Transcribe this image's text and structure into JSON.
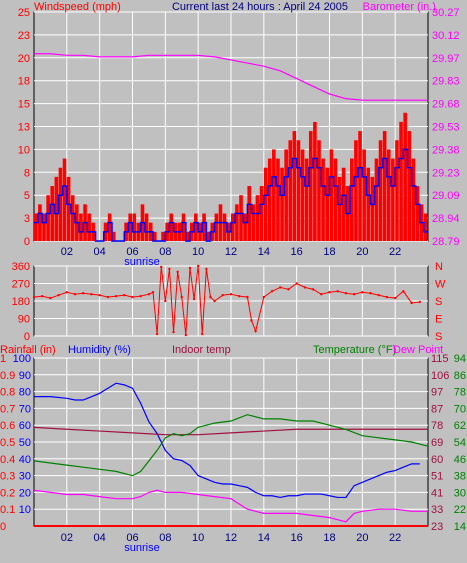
{
  "colors": {
    "background": "#c0c0c0",
    "wind": "#ff0000",
    "gust": "#0000ff",
    "barometer": "#ff00ff",
    "winddir": "#ff0000",
    "rainfall": "#ff0000",
    "humidity": "#0000ff",
    "indoor": "#a01040",
    "temperature": "#008000",
    "dewpoint": "#ff00ff",
    "title": "#000080",
    "gridline": "#ffffff"
  },
  "chart_data": [
    {
      "id": "wind-barometer",
      "type": "bar",
      "title": "Current last 24 hours : April 24 2005",
      "left_axis_label": "Windspeed (mph)",
      "right_axis_label": "Barometer (in.)",
      "x_ticks": [
        "02",
        "04",
        "06",
        "08",
        "10",
        "12",
        "14",
        "16",
        "18",
        "20",
        "22"
      ],
      "x_tick_hours": [
        2,
        4,
        6,
        8,
        10,
        12,
        14,
        16,
        18,
        20,
        22
      ],
      "x_range": [
        0,
        24
      ],
      "sunrise_label": "sunrise",
      "sunrise_hour": 6,
      "left_ticks": [
        "0",
        "3",
        "5",
        "8",
        "10",
        "13",
        "15",
        "18",
        "20",
        "23",
        "25"
      ],
      "left_range": [
        0,
        25
      ],
      "right_ticks": [
        "28.79",
        "28.94",
        "29.09",
        "29.23",
        "29.38",
        "29.53",
        "29.68",
        "29.83",
        "29.97",
        "30.12",
        "30.27"
      ],
      "right_range": [
        28.79,
        30.27
      ],
      "series": [
        {
          "name": "Windspeed",
          "style": "bars",
          "x": [
            0,
            0.25,
            0.5,
            0.75,
            1,
            1.25,
            1.5,
            1.75,
            2,
            2.25,
            2.5,
            2.75,
            3,
            3.25,
            3.5,
            3.75,
            4,
            4.25,
            4.5,
            4.75,
            5,
            5.25,
            5.5,
            5.75,
            6,
            6.25,
            6.5,
            6.75,
            7,
            7.25,
            7.5,
            7.75,
            8,
            8.25,
            8.5,
            8.75,
            9,
            9.25,
            9.5,
            9.75,
            10,
            10.25,
            10.5,
            10.75,
            11,
            11.25,
            11.5,
            11.75,
            12,
            12.25,
            12.5,
            12.75,
            13,
            13.25,
            13.5,
            13.75,
            14,
            14.25,
            14.5,
            14.75,
            15,
            15.25,
            15.5,
            15.75,
            16,
            16.25,
            16.5,
            16.75,
            17,
            17.25,
            17.5,
            17.75,
            18,
            18.25,
            18.5,
            18.75,
            19,
            19.25,
            19.5,
            19.75,
            20,
            20.25,
            20.5,
            20.75,
            21,
            21.25,
            21.5,
            21.75,
            22,
            22.25,
            22.5,
            22.75,
            23,
            23.25,
            23.5,
            23.75
          ],
          "values": [
            3,
            4,
            3,
            5,
            6,
            7,
            8,
            9,
            7,
            5,
            4,
            3,
            4,
            3,
            2,
            0,
            0,
            2,
            3,
            1,
            0,
            0,
            2,
            3,
            3,
            2,
            4,
            3,
            2,
            1,
            0,
            1,
            2,
            3,
            2,
            2,
            3,
            1,
            2,
            3,
            2,
            3,
            1,
            2,
            3,
            4,
            3,
            2,
            3,
            4,
            5,
            3,
            6,
            4,
            5,
            6,
            8,
            9,
            10,
            9,
            8,
            10,
            11,
            12,
            11,
            10,
            9,
            12,
            13,
            11,
            9,
            8,
            10,
            9,
            7,
            8,
            6,
            9,
            11,
            12,
            10,
            8,
            7,
            9,
            11,
            12,
            10,
            9,
            11,
            13,
            14,
            12,
            9,
            6,
            4,
            3
          ]
        },
        {
          "name": "Gust",
          "style": "steps",
          "x": [
            0,
            0.25,
            0.5,
            0.75,
            1,
            1.25,
            1.5,
            1.75,
            2,
            2.25,
            2.5,
            2.75,
            3,
            3.25,
            3.5,
            3.75,
            4,
            4.25,
            4.5,
            4.75,
            5,
            5.25,
            5.5,
            5.75,
            6,
            6.25,
            6.5,
            6.75,
            7,
            7.25,
            7.5,
            7.75,
            8,
            8.25,
            8.5,
            8.75,
            9,
            9.25,
            9.5,
            9.75,
            10,
            10.25,
            10.5,
            10.75,
            11,
            11.25,
            11.5,
            11.75,
            12,
            12.25,
            12.5,
            12.75,
            13,
            13.25,
            13.5,
            13.75,
            14,
            14.25,
            14.5,
            14.75,
            15,
            15.25,
            15.5,
            15.75,
            16,
            16.25,
            16.5,
            16.75,
            17,
            17.25,
            17.5,
            17.75,
            18,
            18.25,
            18.5,
            18.75,
            19,
            19.25,
            19.5,
            19.75,
            20,
            20.25,
            20.5,
            20.75,
            21,
            21.25,
            21.5,
            21.75,
            22,
            22.25,
            22.5,
            22.75,
            23,
            23.25,
            23.5,
            23.75
          ],
          "values": [
            2,
            3,
            2,
            3,
            4,
            3,
            5,
            6,
            4,
            3,
            2,
            1,
            2,
            1,
            1,
            0,
            0,
            1,
            2,
            0,
            0,
            0,
            1,
            2,
            1,
            1,
            2,
            1,
            1,
            0,
            0,
            0,
            1,
            2,
            1,
            1,
            2,
            0,
            1,
            2,
            1,
            2,
            0,
            1,
            2,
            2,
            2,
            1,
            2,
            3,
            3,
            2,
            4,
            3,
            3,
            4,
            5,
            6,
            7,
            6,
            5,
            7,
            8,
            9,
            8,
            7,
            6,
            8,
            9,
            8,
            6,
            5,
            7,
            6,
            4,
            5,
            3,
            6,
            7,
            8,
            7,
            5,
            4,
            6,
            8,
            9,
            7,
            6,
            8,
            9,
            10,
            8,
            6,
            4,
            2,
            1
          ]
        },
        {
          "name": "Barometer",
          "style": "line",
          "x": [
            0,
            1,
            2,
            3,
            4,
            5,
            6,
            7,
            8,
            9,
            10,
            11,
            12,
            13,
            14,
            15,
            16,
            17,
            18,
            19,
            20,
            21,
            22,
            23,
            24
          ],
          "values": [
            30.0,
            30.0,
            29.99,
            29.99,
            29.98,
            29.98,
            29.98,
            29.99,
            29.99,
            29.99,
            29.99,
            29.98,
            29.96,
            29.94,
            29.92,
            29.89,
            29.84,
            29.79,
            29.74,
            29.71,
            29.7,
            29.7,
            29.7,
            29.7,
            29.7
          ]
        }
      ]
    },
    {
      "id": "wind-direction",
      "type": "line",
      "left_ticks": [
        "0",
        "90",
        "180",
        "270",
        "360"
      ],
      "left_range": [
        0,
        360
      ],
      "right_ticks": [
        "S",
        "E",
        "S",
        "W",
        "N"
      ],
      "right_tick_values": [
        0,
        90,
        180,
        270,
        360
      ],
      "x_range": [
        0,
        24
      ],
      "series": [
        {
          "name": "Wind direction",
          "x": [
            0,
            0.5,
            1,
            1.5,
            2,
            2.5,
            3,
            3.5,
            4,
            4.5,
            5,
            5.5,
            6,
            6.5,
            7,
            7.25,
            7.5,
            7.75,
            8,
            8.25,
            8.5,
            8.75,
            9,
            9.25,
            9.5,
            9.75,
            10,
            10.25,
            10.5,
            10.75,
            11,
            11.5,
            12,
            12.5,
            13,
            13.25,
            13.5,
            14,
            14.5,
            15,
            15.5,
            16,
            16.5,
            17,
            17.5,
            18,
            18.5,
            19,
            19.5,
            20,
            20.5,
            21,
            21.5,
            22,
            22.5,
            23,
            23.5
          ],
          "values": [
            200,
            205,
            195,
            210,
            225,
            215,
            220,
            215,
            210,
            200,
            205,
            210,
            200,
            205,
            215,
            225,
            10,
            355,
            180,
            345,
            20,
            330,
            200,
            5,
            350,
            190,
            360,
            10,
            345,
            200,
            180,
            210,
            215,
            205,
            200,
            80,
            25,
            200,
            230,
            250,
            240,
            270,
            250,
            240,
            215,
            225,
            230,
            220,
            215,
            225,
            220,
            210,
            200,
            195,
            230,
            170,
            175
          ]
        }
      ]
    },
    {
      "id": "climate",
      "type": "line",
      "labels": {
        "rainfall": "Rainfall (in)",
        "humidity": "Humidity (%)",
        "indoor": "Indoor temp",
        "temperature": "Temperature (°F)",
        "dewpoint": "Dew Point"
      },
      "x_ticks": [
        "02",
        "04",
        "06",
        "08",
        "10",
        "12",
        "14",
        "16",
        "18",
        "20",
        "22"
      ],
      "x_tick_hours": [
        2,
        4,
        6,
        8,
        10,
        12,
        14,
        16,
        18,
        20,
        22
      ],
      "x_range": [
        0,
        24
      ],
      "sunrise_label": "sunrise",
      "sunrise_hour": 6,
      "rain_ticks": [
        "0",
        "0.1",
        "0.2",
        "0.3",
        "0.4",
        "0.5",
        "0.6",
        "0.7",
        "0.8",
        "0.9",
        "1"
      ],
      "humidity_ticks": [
        "10",
        "20",
        "30",
        "40",
        "50",
        "60",
        "70",
        "80",
        "90",
        "100"
      ],
      "humidity_range": [
        0,
        100
      ],
      "indoor_ticks": [
        "23",
        "33",
        "41",
        "51",
        "60",
        "69",
        "78",
        "87",
        "97",
        "106",
        "115"
      ],
      "indoor_range": [
        23,
        115
      ],
      "temperature_ticks": [
        "14",
        "22",
        "30",
        "38",
        "46",
        "54",
        "62",
        "70",
        "78",
        "86",
        "94"
      ],
      "temperature_range": [
        14,
        94
      ],
      "series": [
        {
          "name": "Humidity",
          "x": [
            0,
            1,
            2,
            2.5,
            3,
            3.5,
            4,
            4.5,
            5,
            5.5,
            6,
            6.5,
            7,
            7.5,
            8,
            8.5,
            9,
            9.5,
            10,
            10.5,
            11,
            11.5,
            12,
            12.5,
            13,
            13.5,
            14,
            14.5,
            15,
            15.5,
            16,
            16.5,
            17,
            17.5,
            18,
            18.5,
            19,
            19.5,
            20,
            20.5,
            21,
            21.5,
            22,
            22.5,
            23,
            23.5
          ],
          "values": [
            77,
            77,
            76,
            75,
            75,
            77,
            79,
            82,
            85,
            84,
            82,
            73,
            62,
            55,
            45,
            40,
            39,
            36,
            30,
            28,
            26,
            25,
            25,
            24,
            23,
            20,
            18,
            18,
            17,
            18,
            18,
            19,
            19,
            19,
            18,
            17,
            17,
            24,
            26,
            28,
            30,
            32,
            33,
            35,
            37,
            37
          ]
        },
        {
          "name": "Indoor temp",
          "x": [
            0,
            2,
            4,
            6,
            8,
            10,
            12,
            14,
            16,
            18,
            20,
            22,
            24
          ],
          "values": [
            77,
            76,
            75,
            74,
            73,
            73,
            74,
            75,
            76,
            76,
            76,
            76,
            76
          ]
        },
        {
          "name": "Temperature",
          "x": [
            0,
            1,
            2,
            3,
            4,
            5,
            6,
            6.5,
            7,
            7.5,
            8,
            8.5,
            9,
            9.5,
            10,
            11,
            12,
            13,
            14,
            15,
            16,
            17,
            18,
            19,
            20,
            21,
            22,
            23,
            24
          ],
          "values": [
            45,
            44,
            43,
            42,
            41,
            40,
            38,
            40,
            45,
            50,
            56,
            58,
            57,
            58,
            61,
            63,
            64,
            67,
            65,
            65,
            64,
            64,
            62,
            60,
            57,
            56,
            55,
            54,
            52
          ]
        },
        {
          "name": "Dew Point",
          "x": [
            0,
            1,
            2,
            3,
            4,
            5,
            6,
            6.5,
            7,
            7.5,
            8,
            9,
            10,
            11,
            12,
            13,
            14,
            15,
            16,
            17,
            18,
            19,
            19.5,
            20,
            21,
            22,
            23,
            24
          ],
          "values": [
            31,
            30,
            29,
            29,
            28,
            27,
            27,
            28,
            30,
            31,
            30,
            30,
            29,
            28,
            27,
            22,
            20,
            20,
            20,
            19,
            18,
            16,
            20,
            21,
            22,
            22,
            21,
            21
          ]
        },
        {
          "name": "Rainfall",
          "x": [
            0,
            24
          ],
          "values": [
            0,
            0
          ]
        }
      ]
    }
  ]
}
